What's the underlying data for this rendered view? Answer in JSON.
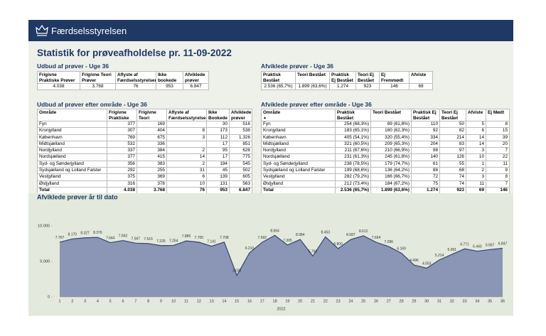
{
  "header": {
    "brand": "Færdselsstyrelsen"
  },
  "title": "Statistik for prøveafholdelse pr. 11-09-2022",
  "tables": [
    {
      "title": "Udbud af prøver - Uge 36",
      "headers": [
        "Frigivne Praktiske Prøver",
        "Frigivne Teori Prøver",
        "Aflyste af Færdselsstyrelsen",
        "Ikke bookede",
        "Afviklede prøver"
      ],
      "rows": [
        [
          "4.038",
          "3.768",
          "76",
          "953",
          "6.847"
        ]
      ]
    },
    {
      "title": "Afviklede prøver - Uge 36",
      "headers": [
        "Praktisk Bestået",
        "Teori Bestået",
        "Praktisk Ej Bestået",
        "Teori Ej Bestået",
        "Ej Fremmødt",
        "Afviste"
      ],
      "rows": [
        [
          "2.536 (65,7%)",
          "1.899 (63,6%)",
          "1.274",
          "923",
          "146",
          "69"
        ]
      ]
    },
    {
      "title": "Udbud af prøver efter område - Uge 36",
      "headers": [
        "Område",
        "Frigivne Praktiske",
        "Frigivne Teori",
        "Aflyste af Færdselsstyrelsen",
        "Ikke Bookede",
        "Afviklede prøver"
      ],
      "rows": [
        [
          "Fyn",
          "377",
          "169",
          null,
          "30",
          "516"
        ],
        [
          "Kronjylland",
          "307",
          "404",
          "8",
          "173",
          "538"
        ],
        [
          "København",
          "769",
          "675",
          "3",
          "112",
          "1.326"
        ],
        [
          "Midtsjælland",
          "532",
          "336",
          null,
          "17",
          "851"
        ],
        [
          "Nordjylland",
          "337",
          "384",
          "2",
          "95",
          "626"
        ],
        [
          "Nordsjælland",
          "377",
          "415",
          "14",
          "17",
          "775"
        ],
        [
          "Syd- og Sønderjylland",
          "356",
          "383",
          "2",
          "194",
          "545"
        ],
        [
          "Sydsjælland og Lolland Falster",
          "292",
          "255",
          "31",
          "45",
          "502"
        ],
        [
          "Vestjylland",
          "375",
          "369",
          "6",
          "139",
          "605"
        ],
        [
          "Østjylland",
          "316",
          "378",
          "10",
          "131",
          "563"
        ],
        [
          "Total",
          "4.038",
          "3.768",
          "76",
          "953",
          "6.847"
        ]
      ]
    },
    {
      "title": "Afviklede prøver efter område - Uge 36",
      "headers": [
        "Område",
        "Praktisk Bestået",
        "Teori Bestået",
        "Praktisk Ej Bestået",
        "Teori Ej Bestået",
        "Afviste",
        "Ej Mødt"
      ],
      "rows": [
        [
          "Fyn",
          "254 (68,3%)",
          "89 (61,8%)",
          "110",
          "50",
          "5",
          "8"
        ],
        [
          "Kronjylland",
          "183 (65,1%)",
          "160 (62,3%)",
          "92",
          "82",
          "6",
          "15"
        ],
        [
          "København",
          "405 (54,1%)",
          "320 (55,4%)",
          "334",
          "214",
          "14",
          "39"
        ],
        [
          "Midtsjælland",
          "321 (60,5%)",
          "209 (65,3%)",
          "204",
          "83",
          "14",
          "20"
        ],
        [
          "Nordjylland",
          "211 (67,6%)",
          "210 (66,9%)",
          "98",
          "97",
          "3",
          "7"
        ],
        [
          "Nordsjælland",
          "231 (61,3%)",
          "245 (61,8%)",
          "140",
          "126",
          "10",
          "22"
        ],
        [
          "Syd- og Sønderjylland",
          "238 (78,5%)",
          "179 (74,7%)",
          "61",
          "55",
          "1",
          "11"
        ],
        [
          "Sydsjælland og Lolland Falster",
          "199 (68,6%)",
          "136 (64,2%)",
          "88",
          "68",
          "2",
          "9"
        ],
        [
          "Vestjylland",
          "282 (79,2%)",
          "166 (66,7%)",
          "72",
          "74",
          "3",
          "8"
        ],
        [
          "Østjylland",
          "212 (73,4%)",
          "184 (67,2%)",
          "75",
          "74",
          "11",
          "7"
        ],
        [
          "Total",
          "2.536 (65,7%)",
          "1.899 (63,6%)",
          "1.274",
          "923",
          "69",
          "146"
        ]
      ]
    }
  ],
  "chart_data": {
    "type": "area",
    "title": "Afviklede prøver år til dato",
    "xlabel": "2022",
    "x": [
      1,
      2,
      3,
      4,
      5,
      6,
      7,
      8,
      9,
      10,
      11,
      12,
      13,
      14,
      15,
      16,
      17,
      18,
      19,
      20,
      21,
      22,
      23,
      24,
      25,
      26,
      27,
      28,
      29,
      30,
      31,
      32,
      33,
      34,
      35,
      36
    ],
    "values": [
      7707,
      8170,
      8327,
      8376,
      7644,
      7942,
      7567,
      7515,
      7225,
      7254,
      7885,
      7700,
      7141,
      7708,
      3035,
      6210,
      7692,
      8664,
      7305,
      8084,
      5760,
      8453,
      6800,
      8087,
      8612,
      7694,
      7096,
      6169,
      4496,
      4053,
      5214,
      5991,
      6771,
      6443,
      6667,
      6847
    ],
    "value_labels": [
      "7.707",
      "8.170",
      "8.327",
      "8.376",
      "7.644",
      "7.942",
      "7.567",
      "7.515",
      "7.225",
      "7.254",
      "7.885",
      "7.700",
      "7.141",
      "7.708",
      "3.035",
      "6.210",
      "7.692",
      "8.664",
      "7.305",
      "8.084",
      "5.760",
      "8.453",
      "6.800",
      "8.087",
      "8.612",
      "7.694",
      "7.096",
      "6.169",
      "4.496",
      "4.053",
      "5.214",
      "5.991",
      "6.771",
      "6.443",
      "6.667",
      "6.847"
    ],
    "xlim": [
      1,
      36
    ],
    "ylim": [
      0,
      10000
    ],
    "yticks": [
      0,
      {
        "value": 5000,
        "label": "5.000"
      },
      {
        "value": 10000,
        "label": "10.000"
      }
    ],
    "color": "#8b95b6",
    "line_color": "#36456f",
    "grid": false
  }
}
